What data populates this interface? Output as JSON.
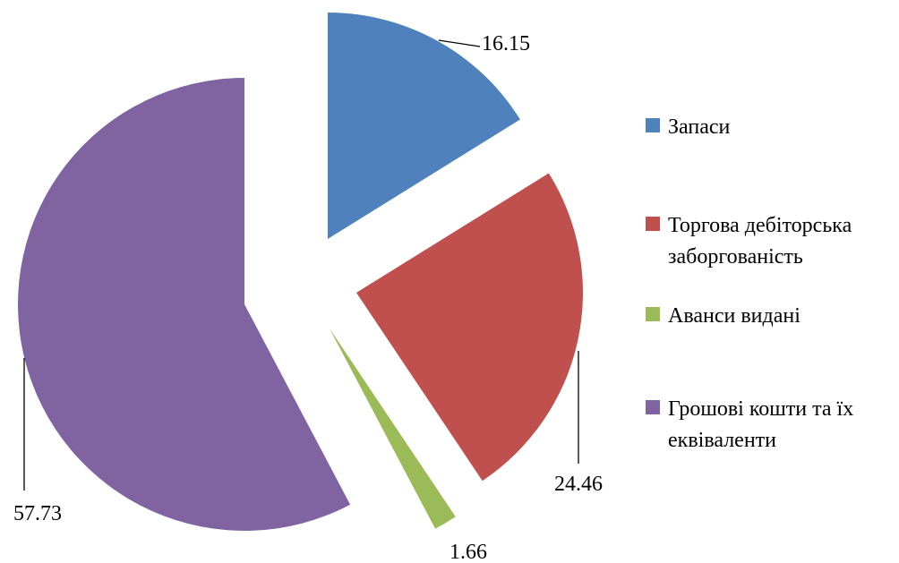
{
  "chart_data": {
    "type": "pie",
    "exploded": true,
    "legend_position": "right",
    "slices": [
      {
        "name": "Запаси",
        "value": 16.15,
        "label": "16.15",
        "color": "#4F81BD"
      },
      {
        "name": "Торгова дебіторська заборгованість",
        "value": 24.46,
        "label": "24.46",
        "color": "#C0504D"
      },
      {
        "name": "Аванси видані",
        "value": 1.66,
        "label": "1.66",
        "color": "#9BBB59"
      },
      {
        "name": "Грошові кошти та їх еквіваленти",
        "value": 57.73,
        "label": "57.73",
        "color": "#8064A2"
      }
    ]
  }
}
